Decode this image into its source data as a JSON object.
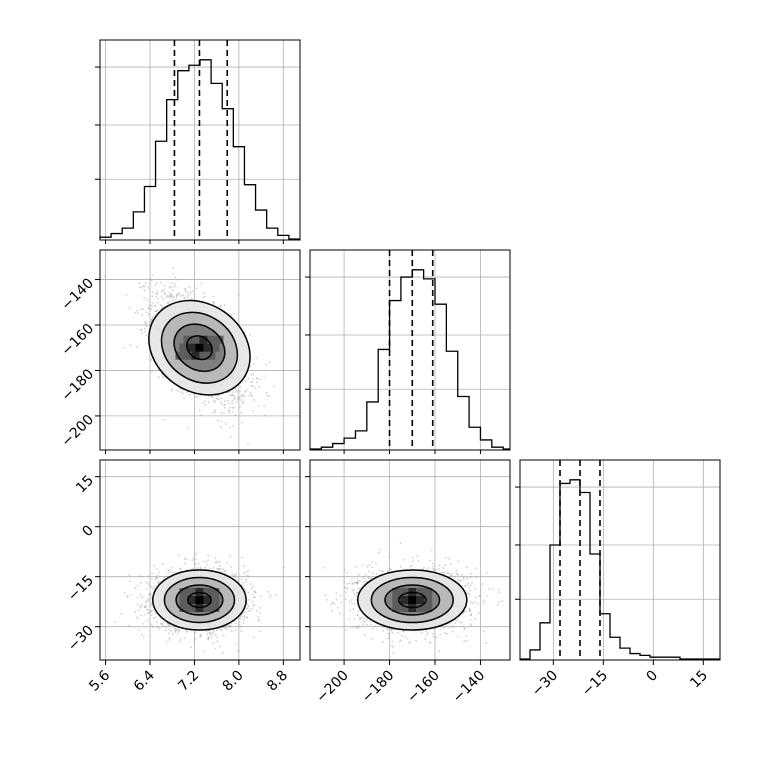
{
  "chart_data": {
    "type": "corner",
    "parameters": [
      {
        "ticks": [
          5.6,
          6.4,
          7.2,
          8.0,
          8.8
        ],
        "tick_labels": [
          "5.6",
          "6.4",
          "7.2",
          "8.0",
          "8.8"
        ],
        "range": [
          5.5,
          9.1
        ]
      },
      {
        "ticks": [
          -200,
          -180,
          -160,
          -140
        ],
        "tick_labels": [
          "−200",
          "−180",
          "−160",
          "−140"
        ],
        "range": [
          -215,
          -127
        ]
      },
      {
        "ticks": [
          -30,
          -15,
          0,
          15
        ],
        "tick_labels": [
          "−30",
          "−15",
          "0",
          "15"
        ],
        "range": [
          -40,
          20
        ]
      }
    ],
    "histograms": [
      {
        "bin_edges": [
          5.5,
          5.7,
          5.9,
          6.1,
          6.3,
          6.5,
          6.7,
          6.9,
          7.1,
          7.3,
          7.5,
          7.7,
          7.9,
          8.1,
          8.3,
          8.5,
          8.7,
          8.9,
          9.1
        ],
        "counts": [
          0.01,
          0.03,
          0.06,
          0.15,
          0.29,
          0.54,
          0.77,
          0.93,
          0.96,
          0.99,
          0.86,
          0.72,
          0.51,
          0.3,
          0.16,
          0.06,
          0.02,
          0.0
        ],
        "quantiles": [
          6.84,
          7.29,
          7.79
        ]
      },
      {
        "bin_edges": [
          -215,
          -210,
          -205,
          -200,
          -195,
          -190,
          -185,
          -180,
          -175,
          -170,
          -165,
          -160,
          -155,
          -150,
          -145,
          -140,
          -135,
          -130,
          -127
        ],
        "counts": [
          0.0,
          0.01,
          0.03,
          0.06,
          0.1,
          0.26,
          0.55,
          0.82,
          0.95,
          0.99,
          0.94,
          0.8,
          0.54,
          0.29,
          0.12,
          0.05,
          0.01,
          0.0
        ],
        "quantiles": [
          -180,
          -170,
          -161
        ]
      },
      {
        "bin_edges": [
          -40,
          -37,
          -34,
          -31,
          -28,
          -25,
          -22,
          -19,
          -16,
          -13,
          -10,
          -7,
          -4,
          -1,
          2,
          5,
          8,
          11,
          14,
          17,
          20
        ],
        "counts": [
          0.0,
          0.05,
          0.2,
          0.63,
          0.97,
          0.99,
          0.92,
          0.58,
          0.25,
          0.12,
          0.06,
          0.03,
          0.02,
          0.01,
          0.01,
          0.01,
          0.0,
          0.0,
          0.0,
          0.0
        ],
        "quantiles": [
          -28,
          -22,
          -16
        ]
      }
    ],
    "pairs": [
      {
        "x_param": 0,
        "y_param": 1,
        "mean": [
          7.29,
          -170
        ],
        "sigma": [
          0.42,
          12
        ],
        "rho": -0.55,
        "scatter_count": 2200
      },
      {
        "x_param": 0,
        "y_param": 2,
        "mean": [
          7.29,
          -22
        ],
        "sigma": [
          0.42,
          4.5
        ],
        "rho": 0.0,
        "scatter_count": 2200
      },
      {
        "x_param": 1,
        "y_param": 2,
        "mean": [
          -170,
          -22
        ],
        "sigma": [
          12,
          4.5
        ],
        "rho": 0.0,
        "scatter_count": 2200
      }
    ],
    "contour_levels_sigma": [
      0.5,
      1.0,
      1.5,
      2.0
    ],
    "grid": true,
    "colors": {
      "line": "#000000",
      "scatter": "#9a9a9a",
      "grid": "#b0b0b0",
      "background": "#ffffff"
    }
  }
}
